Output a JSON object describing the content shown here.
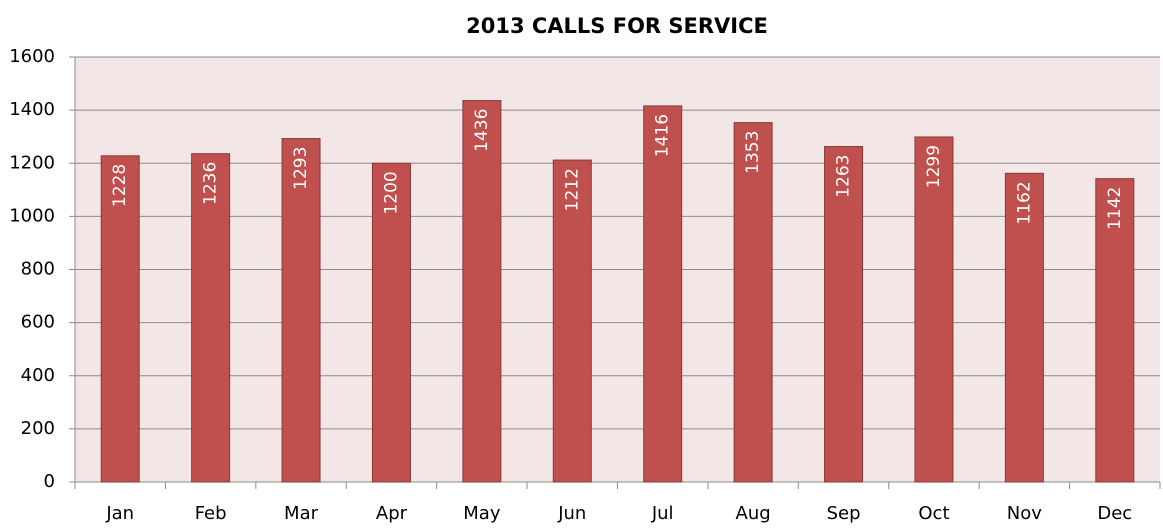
{
  "chart_data": {
    "type": "bar",
    "title": "2013 CALLS FOR SERVICE",
    "categories": [
      "Jan",
      "Feb",
      "Mar",
      "Apr",
      "May",
      "Jun",
      "Jul",
      "Aug",
      "Sep",
      "Oct",
      "Nov",
      "Dec"
    ],
    "values": [
      1228,
      1236,
      1293,
      1200,
      1436,
      1212,
      1416,
      1353,
      1263,
      1299,
      1162,
      1142
    ],
    "color": "#c0504d",
    "ylim": [
      0,
      1600
    ],
    "yticks": [
      0,
      200,
      400,
      600,
      800,
      1000,
      1200,
      1400,
      1600
    ],
    "grid": true
  }
}
